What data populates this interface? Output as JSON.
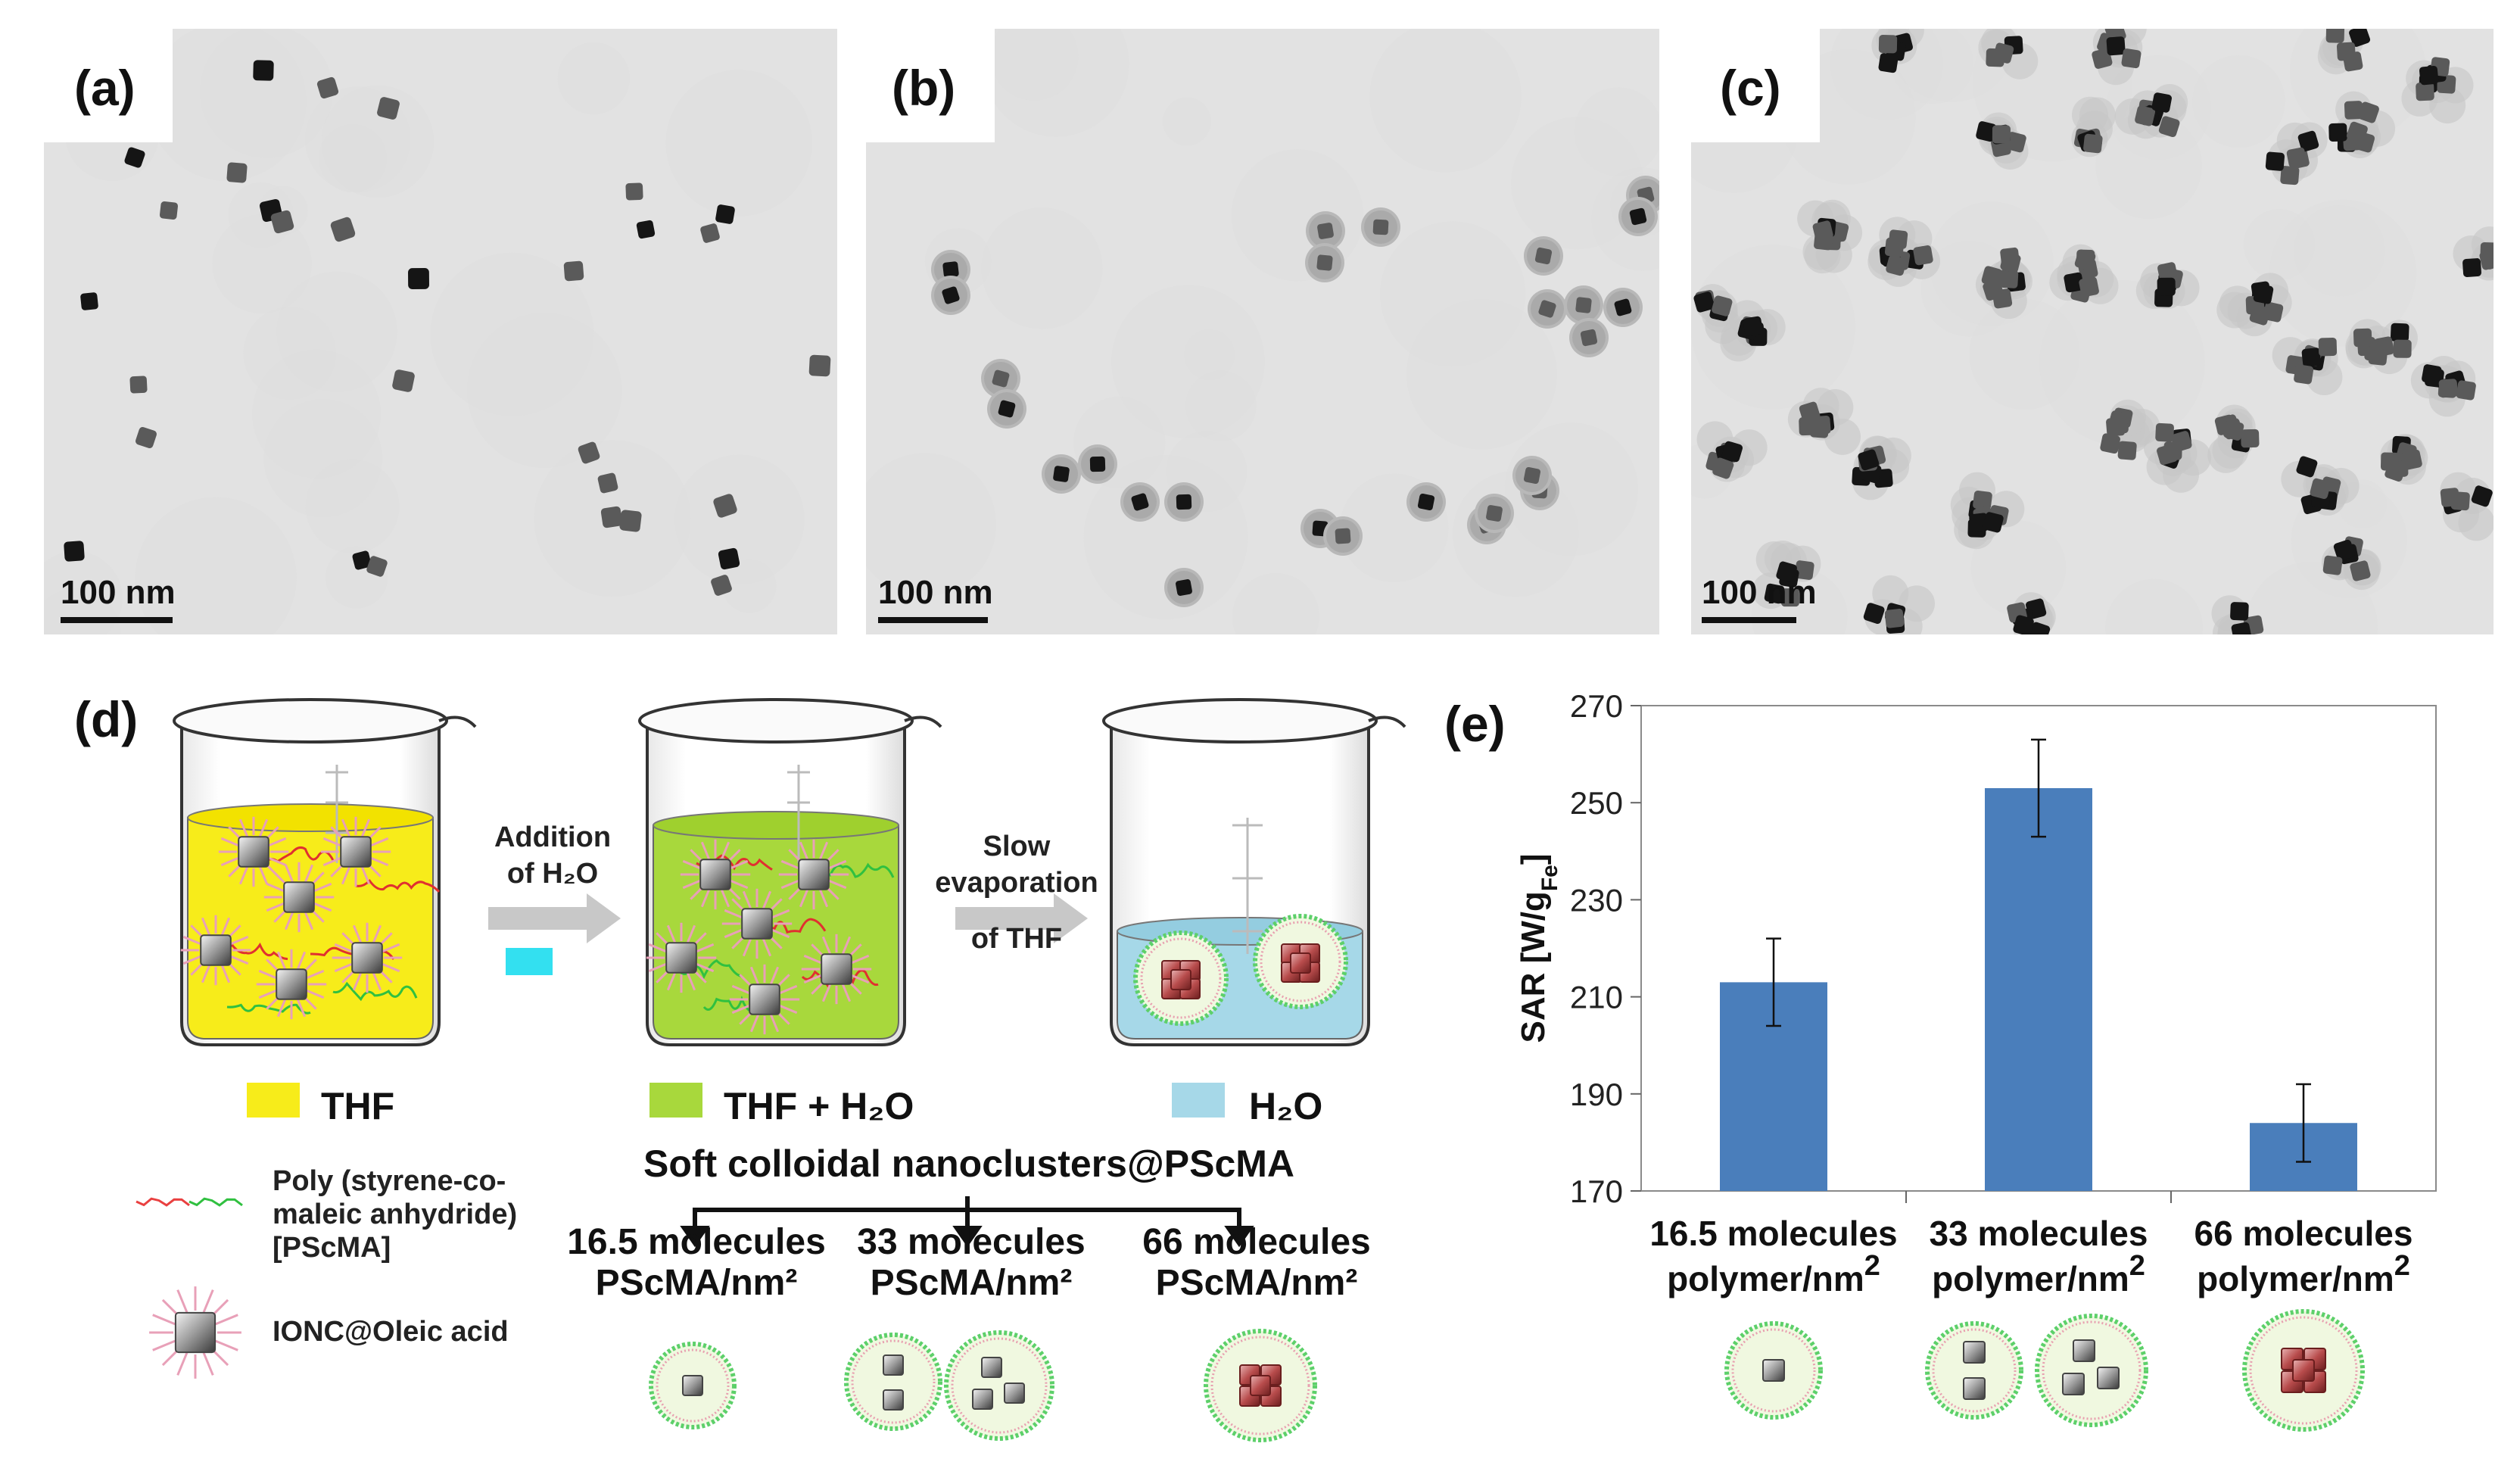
{
  "panels": {
    "a": {
      "label": "(a)",
      "scale": "100 nm"
    },
    "b": {
      "label": "(b)",
      "scale": "100 nm"
    },
    "c": {
      "label": "(c)",
      "scale": "100 nm"
    },
    "d": {
      "label": "(d)"
    },
    "e": {
      "label": "(e)"
    }
  },
  "scheme": {
    "arrow1_line1": "Addition",
    "arrow1_line2": "of H₂O",
    "arrow2_line1": "Slow",
    "arrow2_line2": "evaporation",
    "arrow2_line3": "of THF",
    "beaker1_legend": "THF",
    "beaker2_legend": "THF + H₂O",
    "beaker3_legend": "H₂O",
    "colors": {
      "thf": "#f7ec1a",
      "thf_h2o": "#a8d83c",
      "h2o": "#a6d8e8",
      "h2o_marker": "#33e0f0"
    },
    "legend_polymer_line1": "Poly (styrene-co-",
    "legend_polymer_line2": "maleic anhydride)",
    "legend_polymer_line3": "[PScMA]",
    "legend_ionc": "IONC@Oleic acid",
    "title": "Soft colloidal nanoclusters@PScMA",
    "branch1_line1": "16.5 molecules",
    "branch1_line2": "PScMA/nm²",
    "branch2_line1": "33 molecules",
    "branch2_line2": "PScMA/nm²",
    "branch3_line1": "66 molecules",
    "branch3_line2": "PScMA/nm²"
  },
  "chart_data": {
    "type": "bar",
    "categories": [
      "16.5 molecules polymer/nm2",
      "33 molecules polymer/nm2",
      "66 molecules polymer/nm2"
    ],
    "category_lines": [
      [
        "16.5 molecules",
        "polymer/nm2"
      ],
      [
        "33 molecules",
        "polymer/nm2"
      ],
      [
        "66 molecules",
        "polymer/nm2"
      ]
    ],
    "values": [
      213,
      253,
      184
    ],
    "errors": [
      9,
      10,
      8
    ],
    "ylabel": "SAR [W/gFe]",
    "ylim": [
      170,
      270
    ],
    "yticks": [
      170,
      190,
      210,
      230,
      250,
      270
    ],
    "bar_color": "#4a7ebb",
    "grid": false
  }
}
